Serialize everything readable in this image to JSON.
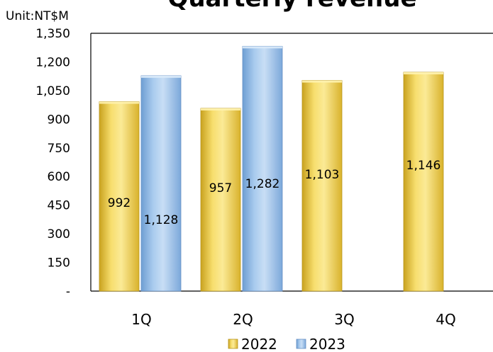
{
  "chart_data": {
    "type": "bar",
    "title": "Quarterly revenue",
    "unit_label": "Unit:NT$M",
    "categories": [
      "1Q",
      "2Q",
      "3Q",
      "4Q"
    ],
    "series": [
      {
        "name": "2022",
        "values": [
          992,
          957,
          1103,
          1146
        ],
        "labels": [
          "992",
          "957",
          "1,103",
          "1,146"
        ],
        "color": "#F2D250"
      },
      {
        "name": "2023",
        "values": [
          1128,
          1282,
          null,
          null
        ],
        "labels": [
          "1,128",
          "1,282",
          "",
          ""
        ],
        "color": "#9BC3EA"
      }
    ],
    "ylim": [
      0,
      1350
    ],
    "yticks": [
      {
        "value": 0,
        "label": "-"
      },
      {
        "value": 150,
        "label": "150"
      },
      {
        "value": 300,
        "label": "300"
      },
      {
        "value": 450,
        "label": "450"
      },
      {
        "value": 600,
        "label": "600"
      },
      {
        "value": 750,
        "label": "750"
      },
      {
        "value": 900,
        "label": "900"
      },
      {
        "value": 1050,
        "label": "1,050"
      },
      {
        "value": 1200,
        "label": "1,200"
      },
      {
        "value": 1350,
        "label": "1,350"
      }
    ],
    "grid": false,
    "legend_position": "bottom"
  }
}
